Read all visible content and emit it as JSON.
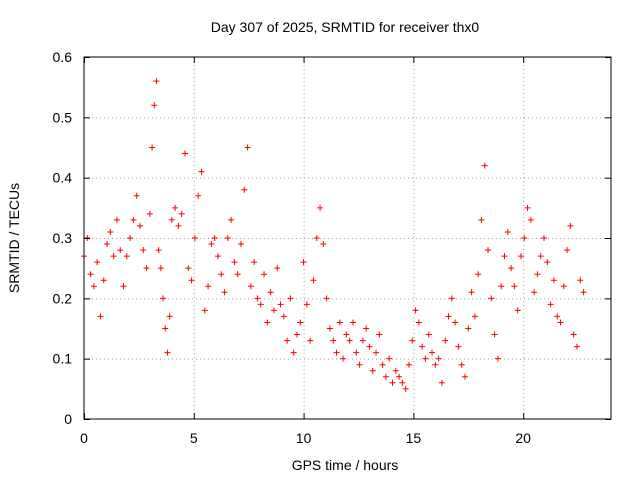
{
  "chart_data": {
    "type": "scatter",
    "title": "Day 307 of 2025, SRMTID for receiver thx0",
    "xlabel": "GPS time / hours",
    "ylabel": "SRMTID / TECUs",
    "xlim": [
      0,
      24
    ],
    "ylim": [
      0,
      0.6
    ],
    "xticks": [
      0,
      5,
      10,
      15,
      20
    ],
    "yticks": [
      0,
      0.1,
      0.2,
      0.3,
      0.4,
      0.5,
      0.6
    ],
    "xtick_labels": [
      "0",
      "5",
      "10",
      "15",
      "20"
    ],
    "ytick_labels": [
      "0",
      "0.1",
      "0.2",
      "0.3",
      "0.4",
      "0.5",
      "0.6"
    ],
    "grid": true,
    "marker": "+",
    "color": "#ff0000",
    "series": [
      {
        "name": "SRMTID",
        "x": [
          0.0,
          0.15,
          0.3,
          0.45,
          0.6,
          0.75,
          0.9,
          1.05,
          1.2,
          1.35,
          1.5,
          1.65,
          1.8,
          1.95,
          2.1,
          2.25,
          2.4,
          2.55,
          2.7,
          2.85,
          3.0,
          3.1,
          3.2,
          3.3,
          3.4,
          3.5,
          3.6,
          3.7,
          3.8,
          3.9,
          4.0,
          4.15,
          4.3,
          4.45,
          4.6,
          4.75,
          4.9,
          5.05,
          5.2,
          5.35,
          5.5,
          5.65,
          5.8,
          5.95,
          6.1,
          6.25,
          6.4,
          6.55,
          6.7,
          6.85,
          7.0,
          7.15,
          7.3,
          7.45,
          7.6,
          7.75,
          7.9,
          8.05,
          8.2,
          8.35,
          8.5,
          8.65,
          8.8,
          8.95,
          9.1,
          9.25,
          9.4,
          9.55,
          9.7,
          9.85,
          10.0,
          10.15,
          10.3,
          10.45,
          10.6,
          10.75,
          10.9,
          11.05,
          11.2,
          11.35,
          11.5,
          11.65,
          11.8,
          11.95,
          12.1,
          12.25,
          12.4,
          12.55,
          12.7,
          12.85,
          13.0,
          13.15,
          13.3,
          13.45,
          13.6,
          13.75,
          13.9,
          14.05,
          14.2,
          14.35,
          14.5,
          14.65,
          14.8,
          14.95,
          15.1,
          15.25,
          15.4,
          15.55,
          15.7,
          15.85,
          16.0,
          16.15,
          16.3,
          16.45,
          16.6,
          16.75,
          16.9,
          17.05,
          17.2,
          17.35,
          17.5,
          17.65,
          17.8,
          17.95,
          18.1,
          18.25,
          18.4,
          18.55,
          18.7,
          18.85,
          19.0,
          19.15,
          19.3,
          19.45,
          19.6,
          19.75,
          19.9,
          20.05,
          20.2,
          20.35,
          20.5,
          20.65,
          20.8,
          20.95,
          21.1,
          21.25,
          21.4,
          21.55,
          21.7,
          21.85,
          22.0,
          22.15,
          22.3,
          22.45,
          22.6,
          22.75
        ],
        "y": [
          0.27,
          0.3,
          0.24,
          0.22,
          0.26,
          0.17,
          0.23,
          0.29,
          0.31,
          0.27,
          0.33,
          0.28,
          0.22,
          0.27,
          0.3,
          0.33,
          0.37,
          0.32,
          0.28,
          0.25,
          0.34,
          0.45,
          0.52,
          0.56,
          0.28,
          0.25,
          0.2,
          0.15,
          0.11,
          0.17,
          0.33,
          0.35,
          0.32,
          0.34,
          0.44,
          0.25,
          0.23,
          0.3,
          0.37,
          0.41,
          0.18,
          0.22,
          0.29,
          0.3,
          0.27,
          0.24,
          0.21,
          0.3,
          0.33,
          0.26,
          0.24,
          0.29,
          0.38,
          0.45,
          0.22,
          0.26,
          0.2,
          0.19,
          0.24,
          0.16,
          0.21,
          0.18,
          0.25,
          0.19,
          0.17,
          0.13,
          0.2,
          0.11,
          0.14,
          0.16,
          0.26,
          0.19,
          0.13,
          0.23,
          0.3,
          0.35,
          0.29,
          0.2,
          0.15,
          0.13,
          0.11,
          0.16,
          0.1,
          0.14,
          0.13,
          0.16,
          0.11,
          0.09,
          0.13,
          0.15,
          0.12,
          0.08,
          0.11,
          0.14,
          0.09,
          0.07,
          0.1,
          0.06,
          0.08,
          0.07,
          0.06,
          0.05,
          0.09,
          0.13,
          0.18,
          0.16,
          0.12,
          0.1,
          0.14,
          0.11,
          0.09,
          0.1,
          0.06,
          0.13,
          0.17,
          0.2,
          0.16,
          0.12,
          0.09,
          0.07,
          0.15,
          0.21,
          0.17,
          0.24,
          0.33,
          0.42,
          0.28,
          0.2,
          0.14,
          0.1,
          0.22,
          0.27,
          0.31,
          0.25,
          0.22,
          0.18,
          0.27,
          0.3,
          0.35,
          0.33,
          0.21,
          0.24,
          0.27,
          0.3,
          0.26,
          0.19,
          0.23,
          0.17,
          0.16,
          0.22,
          0.28,
          0.32,
          0.14,
          0.12,
          0.23,
          0.21
        ]
      }
    ]
  }
}
